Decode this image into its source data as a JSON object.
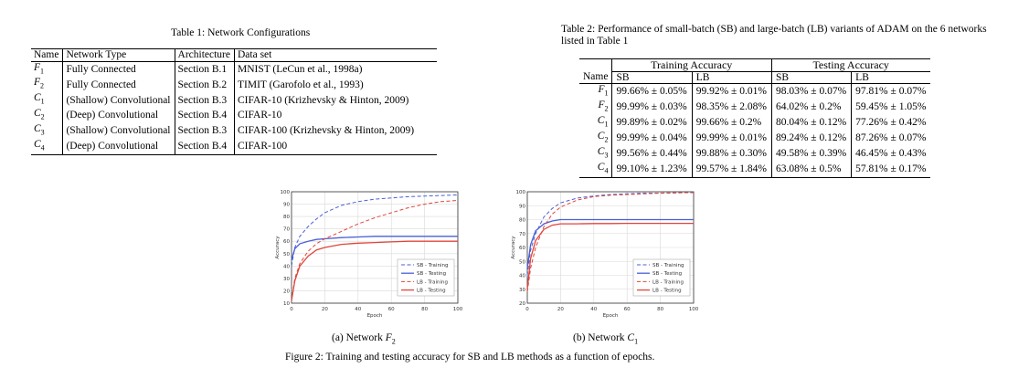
{
  "table1": {
    "caption": "Table 1: Network Configurations",
    "headers": [
      "Name",
      "Network Type",
      "Architecture",
      "Data set"
    ],
    "rows": [
      {
        "name_letter": "F",
        "name_sub": "1",
        "type": "Fully Connected",
        "arch": "Section B.1",
        "data": "MNIST (LeCun et al., 1998a)"
      },
      {
        "name_letter": "F",
        "name_sub": "2",
        "type": "Fully Connected",
        "arch": "Section B.2",
        "data": "TIMIT (Garofolo et al., 1993)"
      },
      {
        "name_letter": "C",
        "name_sub": "1",
        "type": "(Shallow) Convolutional",
        "arch": "Section B.3",
        "data": "CIFAR-10 (Krizhevsky & Hinton, 2009)"
      },
      {
        "name_letter": "C",
        "name_sub": "2",
        "type": "(Deep) Convolutional",
        "arch": "Section B.4",
        "data": "CIFAR-10"
      },
      {
        "name_letter": "C",
        "name_sub": "3",
        "type": "(Shallow) Convolutional",
        "arch": "Section B.3",
        "data": "CIFAR-100 (Krizhevsky & Hinton, 2009)"
      },
      {
        "name_letter": "C",
        "name_sub": "4",
        "type": "(Deep) Convolutional",
        "arch": "Section B.4",
        "data": "CIFAR-100"
      }
    ]
  },
  "table2": {
    "caption_line1": "Table 2: Performance of small-batch (SB) and large-batch (LB) variants of ADAM on the 6 networks",
    "caption_line2": "listed in Table 1",
    "group_headers": [
      "Training Accuracy",
      "Testing Accuracy"
    ],
    "name_header": "Name",
    "sub_headers": [
      "SB",
      "LB",
      "SB",
      "LB"
    ],
    "rows": [
      {
        "name_letter": "F",
        "name_sub": "1",
        "values": [
          "99.66% ± 0.05%",
          "99.92% ± 0.01%",
          "98.03% ± 0.07%",
          "97.81% ± 0.07%"
        ]
      },
      {
        "name_letter": "F",
        "name_sub": "2",
        "values": [
          "99.99% ± 0.03%",
          "98.35% ± 2.08%",
          "64.02% ± 0.2%",
          "59.45% ± 1.05%"
        ]
      },
      {
        "name_letter": "C",
        "name_sub": "1",
        "values": [
          "99.89% ± 0.02%",
          "99.66% ± 0.2%",
          "80.04% ± 0.12%",
          "77.26% ± 0.42%"
        ]
      },
      {
        "name_letter": "C",
        "name_sub": "2",
        "values": [
          "99.99% ± 0.04%",
          "99.99% ± 0.01%",
          "89.24% ± 0.12%",
          "87.26% ± 0.07%"
        ]
      },
      {
        "name_letter": "C",
        "name_sub": "3",
        "values": [
          "99.56% ± 0.44%",
          "99.88% ± 0.30%",
          "49.58% ± 0.39%",
          "46.45% ± 0.43%"
        ]
      },
      {
        "name_letter": "C",
        "name_sub": "4",
        "values": [
          "99.10% ± 1.23%",
          "99.57% ± 1.84%",
          "63.08% ± 0.5%",
          "57.81% ± 0.17%"
        ]
      }
    ]
  },
  "figure": {
    "caption": "Figure 2: Training and testing accuracy for SB and LB methods as a function of epochs.",
    "subcaptions": [
      {
        "prefix": "(a) Network ",
        "letter": "F",
        "sub": "2"
      },
      {
        "prefix": "(b) Network ",
        "letter": "C",
        "sub": "1"
      }
    ]
  },
  "chart_data": [
    {
      "type": "line",
      "xlabel": "Epoch",
      "ylabel": "Accuracy",
      "xlim": [
        0,
        100
      ],
      "ylim": [
        10,
        100
      ],
      "xticks": [
        0,
        20,
        40,
        60,
        80,
        100
      ],
      "yticks": [
        10,
        20,
        30,
        40,
        50,
        60,
        70,
        80,
        90,
        100
      ],
      "grid": true,
      "legend_position": "bottom-right",
      "series": [
        {
          "name": "SB - Training",
          "color": "#4a5fd8",
          "dash": true,
          "x": [
            0,
            2,
            5,
            10,
            15,
            20,
            30,
            40,
            50,
            60,
            70,
            80,
            90,
            100
          ],
          "y": [
            40,
            55,
            64,
            72,
            78,
            83,
            89,
            92,
            94,
            95,
            96,
            96.5,
            97,
            97.5
          ]
        },
        {
          "name": "SB - Testing",
          "color": "#4a5fd8",
          "dash": false,
          "x": [
            0,
            2,
            5,
            10,
            15,
            20,
            30,
            40,
            50,
            60,
            70,
            80,
            90,
            100
          ],
          "y": [
            45,
            54,
            58,
            60,
            61.5,
            62,
            63,
            63.5,
            64,
            64,
            64,
            64,
            64,
            64
          ]
        },
        {
          "name": "LB - Training",
          "color": "#e0453a",
          "dash": true,
          "x": [
            0,
            2,
            5,
            10,
            15,
            20,
            30,
            40,
            50,
            60,
            70,
            80,
            90,
            100
          ],
          "y": [
            12,
            30,
            42,
            52,
            58,
            62,
            68,
            74,
            79,
            83,
            87,
            90,
            92,
            93
          ]
        },
        {
          "name": "LB - Testing",
          "color": "#e0453a",
          "dash": false,
          "x": [
            0,
            2,
            5,
            10,
            15,
            20,
            30,
            40,
            50,
            60,
            70,
            80,
            90,
            100
          ],
          "y": [
            12,
            28,
            40,
            48,
            53,
            55,
            57.5,
            58.5,
            59,
            59.5,
            60,
            60,
            60,
            60
          ]
        }
      ]
    },
    {
      "type": "line",
      "xlabel": "Epoch",
      "ylabel": "Accuracy",
      "xlim": [
        0,
        100
      ],
      "ylim": [
        20,
        100
      ],
      "xticks": [
        0,
        20,
        40,
        60,
        80,
        100
      ],
      "yticks": [
        20,
        30,
        40,
        50,
        60,
        70,
        80,
        90,
        100
      ],
      "grid": true,
      "legend_position": "bottom-right",
      "series": [
        {
          "name": "SB - Training",
          "color": "#4a5fd8",
          "dash": true,
          "x": [
            0,
            2,
            5,
            10,
            15,
            20,
            30,
            40,
            50,
            60,
            70,
            80,
            90,
            100
          ],
          "y": [
            40,
            58,
            70,
            82,
            88,
            92,
            95.5,
            97,
            98,
            98.5,
            99,
            99,
            99.3,
            99.5
          ]
        },
        {
          "name": "SB - Testing",
          "color": "#4a5fd8",
          "dash": false,
          "x": [
            0,
            2,
            5,
            10,
            15,
            20,
            30,
            40,
            50,
            60,
            70,
            80,
            90,
            100
          ],
          "y": [
            45,
            62,
            72,
            77,
            79,
            80,
            80,
            80,
            80,
            80,
            80,
            80,
            80,
            80
          ]
        },
        {
          "name": "LB - Training",
          "color": "#e0453a",
          "dash": true,
          "x": [
            0,
            2,
            5,
            10,
            15,
            20,
            30,
            40,
            50,
            60,
            70,
            80,
            90,
            100
          ],
          "y": [
            28,
            45,
            60,
            75,
            84,
            89,
            94,
            96.5,
            97.5,
            98,
            98.5,
            99,
            99.2,
            99.4
          ]
        },
        {
          "name": "LB - Testing",
          "color": "#e0453a",
          "dash": false,
          "x": [
            0,
            2,
            5,
            10,
            15,
            20,
            30,
            40,
            50,
            60,
            70,
            80,
            90,
            100
          ],
          "y": [
            30,
            52,
            65,
            73,
            76,
            77,
            77,
            77.2,
            77.2,
            77.3,
            77.3,
            77.3,
            77.3,
            77.3
          ]
        }
      ]
    }
  ]
}
